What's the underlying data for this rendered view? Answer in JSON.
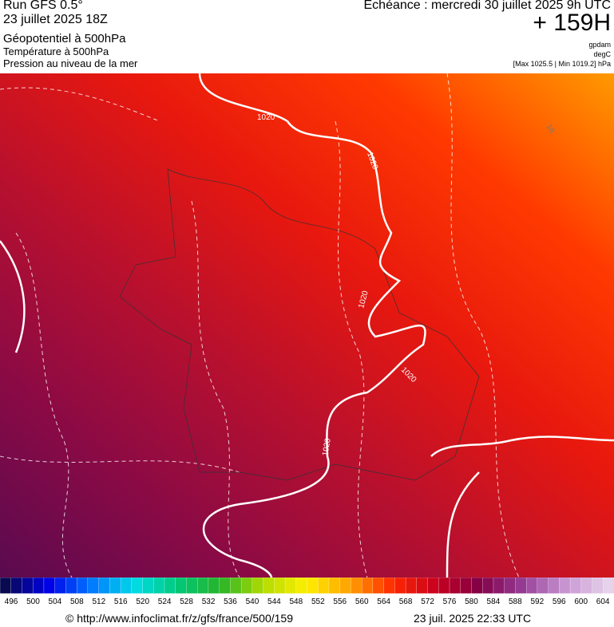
{
  "header": {
    "run": "Run GFS 0.5°",
    "date": "23 juillet 2025 18Z",
    "echeance": "Echéance : mercredi 30 juillet 2025 9h UTC",
    "lead": "+ 159H",
    "fields": [
      "Géopotentiel à 500hPa",
      "Température à 500hPa",
      "Pression au niveau de la mer"
    ],
    "units": [
      "gpdam",
      "degC",
      "[Max 1025.5 | Min 1019.2] hPa"
    ]
  },
  "map": {
    "contour_labels": [
      "1020",
      "1020",
      "1020",
      "1020",
      "1020",
      "16"
    ]
  },
  "scale": {
    "labels": [
      496,
      500,
      504,
      508,
      512,
      516,
      520,
      524,
      528,
      532,
      536,
      540,
      544,
      548,
      552,
      556,
      560,
      564,
      568,
      572,
      576,
      580,
      584,
      588,
      592,
      596,
      600,
      604
    ]
  },
  "footer": {
    "url": "© http://www.infoclimat.fr/z/gfs/france/500/159",
    "timestamp": "23 juil. 2025 22:33 UTC"
  }
}
